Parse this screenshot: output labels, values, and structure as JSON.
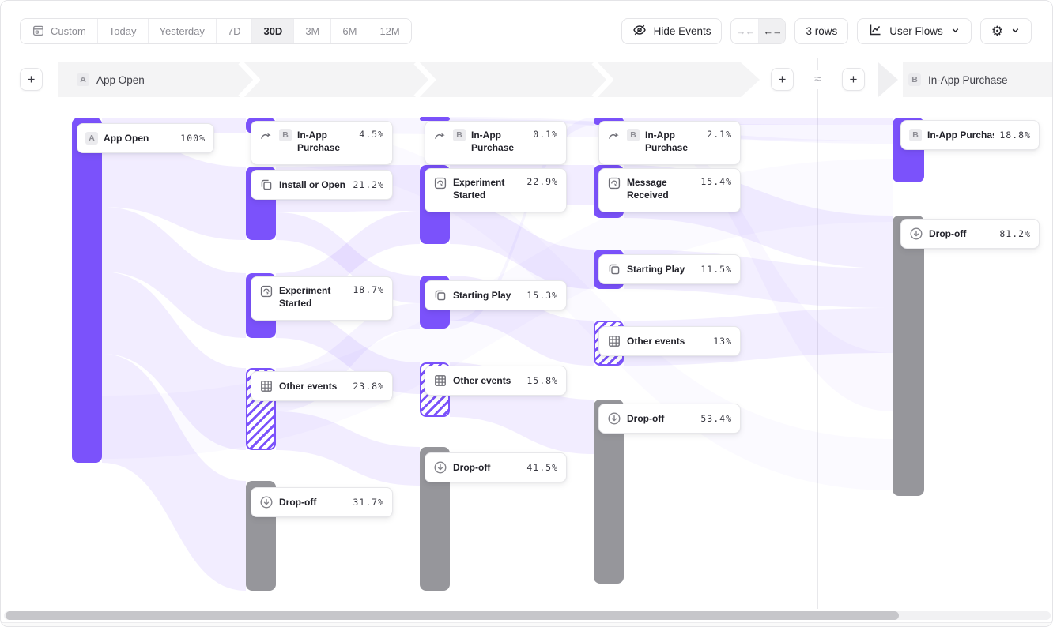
{
  "toolbar": {
    "date_ranges": [
      {
        "label": "Custom",
        "icon": "calendar",
        "active": false
      },
      {
        "label": "Today",
        "active": false
      },
      {
        "label": "Yesterday",
        "active": false
      },
      {
        "label": "7D",
        "active": false
      },
      {
        "label": "30D",
        "active": true
      },
      {
        "label": "3M",
        "active": false
      },
      {
        "label": "6M",
        "active": false
      },
      {
        "label": "12M",
        "active": false
      }
    ],
    "hide_events_label": "Hide Events",
    "collapse_glyph": "→←",
    "expand_glyph": "←→",
    "rows_label": "3 rows",
    "view_label": "User Flows",
    "gear_glyph": "⚙"
  },
  "header": {
    "start": {
      "badge": "A",
      "label": "App Open"
    },
    "end": {
      "badge": "B",
      "label": "In-App Purchase"
    },
    "approx_symbol": "≈",
    "plus_label": "+"
  },
  "colors": {
    "purple": "#7b52fb",
    "gray": "#96969b",
    "link": "#7b52fb"
  },
  "flow": {
    "nodes": [
      {
        "id": "step1-app-open",
        "label": "App Open",
        "value": "100%",
        "badge": "A",
        "icon": null,
        "type": "purple",
        "bar": [
          90,
          148,
          38,
          437
        ],
        "card": [
          96,
          155,
          174
        ],
        "lines": 1
      },
      {
        "id": "step2-in-app-purchase",
        "label": "In-App Purchase",
        "value": "4.5%",
        "badge": "B",
        "icon": "swoosh",
        "type": "purple",
        "bar": [
          310,
          148,
          38,
          20
        ],
        "card": [
          316,
          152,
          180
        ],
        "lines": 2
      },
      {
        "id": "step2-install-or-open",
        "label": "Install or Open",
        "value": "21.2%",
        "badge": null,
        "icon": "copy",
        "type": "purple",
        "bar": [
          310,
          210,
          38,
          93
        ],
        "card": [
          316,
          214,
          180
        ],
        "lines": 1
      },
      {
        "id": "step2-experiment-started",
        "label": "Experiment Started",
        "value": "18.7%",
        "badge": null,
        "icon": "experiment",
        "type": "purple",
        "bar": [
          310,
          345,
          38,
          82
        ],
        "card": [
          316,
          349,
          180
        ],
        "lines": 2
      },
      {
        "id": "step2-other-events",
        "label": "Other events",
        "value": "23.8%",
        "badge": null,
        "icon": "grid",
        "type": "hatched",
        "bar": [
          310,
          465,
          38,
          104
        ],
        "card": [
          316,
          469,
          180
        ],
        "lines": 1
      },
      {
        "id": "step2-drop-off",
        "label": "Drop-off",
        "value": "31.7%",
        "badge": null,
        "icon": "dropoff",
        "type": "gray",
        "bar": [
          310,
          608,
          38,
          139
        ],
        "card": [
          316,
          616,
          180
        ],
        "lines": 1
      },
      {
        "id": "step3-in-app-purchase",
        "label": "In-App Purchase",
        "value": "0.1%",
        "badge": "B",
        "icon": "swoosh",
        "type": "purple thin",
        "bar": [
          530,
          147,
          38,
          5
        ],
        "card": [
          536,
          152,
          180
        ],
        "lines": 2
      },
      {
        "id": "step3-experiment-started",
        "label": "Experiment Started",
        "value": "22.9%",
        "badge": null,
        "icon": "experiment",
        "type": "purple",
        "bar": [
          530,
          208,
          38,
          100
        ],
        "card": [
          536,
          212,
          180
        ],
        "lines": 2
      },
      {
        "id": "step3-starting-play",
        "label": "Starting Play",
        "value": "15.3%",
        "badge": null,
        "icon": "copy",
        "type": "purple",
        "bar": [
          530,
          348,
          38,
          67
        ],
        "card": [
          536,
          354,
          180
        ],
        "lines": 1
      },
      {
        "id": "step3-other-events",
        "label": "Other events",
        "value": "15.8%",
        "badge": null,
        "icon": "grid",
        "type": "hatched",
        "bar": [
          530,
          458,
          38,
          69
        ],
        "card": [
          536,
          462,
          180
        ],
        "lines": 1
      },
      {
        "id": "step3-drop-off",
        "label": "Drop-off",
        "value": "41.5%",
        "badge": null,
        "icon": "dropoff",
        "type": "gray",
        "bar": [
          530,
          565,
          38,
          182
        ],
        "card": [
          536,
          572,
          180
        ],
        "lines": 1
      },
      {
        "id": "step4-in-app-purchase",
        "label": "In-App Purchase",
        "value": "2.1%",
        "badge": "B",
        "icon": "swoosh",
        "type": "purple",
        "bar": [
          750,
          148,
          38,
          9
        ],
        "card": [
          756,
          152,
          180
        ],
        "lines": 2
      },
      {
        "id": "step4-message-received",
        "label": "Message Received",
        "value": "15.4%",
        "badge": null,
        "icon": "experiment",
        "type": "purple",
        "bar": [
          750,
          208,
          38,
          67
        ],
        "card": [
          756,
          212,
          180
        ],
        "lines": 2
      },
      {
        "id": "step4-starting-play",
        "label": "Starting Play",
        "value": "11.5%",
        "badge": null,
        "icon": "copy",
        "type": "purple",
        "bar": [
          750,
          315,
          38,
          50
        ],
        "card": [
          756,
          321,
          180
        ],
        "lines": 1
      },
      {
        "id": "step4-other-events",
        "label": "Other events",
        "value": "13%",
        "badge": null,
        "icon": "grid",
        "type": "hatched",
        "bar": [
          750,
          405,
          38,
          57
        ],
        "card": [
          756,
          412,
          180
        ],
        "lines": 1
      },
      {
        "id": "step4-drop-off",
        "label": "Drop-off",
        "value": "53.4%",
        "badge": null,
        "icon": "dropoff",
        "type": "gray",
        "bar": [
          750,
          505,
          38,
          233
        ],
        "card": [
          756,
          510,
          180
        ],
        "lines": 1
      },
      {
        "id": "target-in-app-purchase",
        "label": "In-App Purchase",
        "value": "18.8%",
        "badge": "B",
        "icon": null,
        "type": "purple",
        "bar": [
          1128,
          148,
          40,
          82
        ],
        "card": [
          1138,
          151,
          176
        ],
        "lines": 1
      },
      {
        "id": "target-drop-off",
        "label": "Drop-off",
        "value": "81.2%",
        "badge": null,
        "icon": "dropoff",
        "type": "gray",
        "bar": [
          1128,
          272,
          40,
          355
        ],
        "card": [
          1138,
          276,
          176
        ],
        "lines": 1
      }
    ],
    "links": [
      [
        128,
        148,
        168,
        310,
        148,
        168,
        0.1
      ],
      [
        128,
        168,
        261,
        310,
        210,
        303,
        0.1
      ],
      [
        128,
        261,
        343,
        310,
        345,
        427,
        0.1
      ],
      [
        128,
        343,
        447,
        310,
        465,
        569,
        0.1
      ],
      [
        128,
        447,
        585,
        310,
        608,
        747,
        0.1
      ],
      [
        348,
        210,
        268,
        530,
        208,
        266,
        0.1
      ],
      [
        348,
        268,
        303,
        530,
        348,
        383,
        0.1
      ],
      [
        348,
        345,
        387,
        530,
        266,
        308,
        0.1
      ],
      [
        348,
        387,
        427,
        530,
        458,
        498,
        0.1
      ],
      [
        348,
        465,
        520,
        530,
        383,
        415,
        0.07
      ],
      [
        348,
        520,
        569,
        530,
        565,
        614,
        0.1
      ],
      [
        568,
        208,
        258,
        750,
        208,
        258,
        0.1
      ],
      [
        568,
        258,
        308,
        750,
        315,
        365,
        0.1
      ],
      [
        568,
        348,
        405,
        750,
        405,
        462,
        0.1
      ],
      [
        568,
        458,
        527,
        750,
        505,
        574,
        0.1
      ],
      [
        568,
        405,
        415,
        750,
        148,
        158,
        0.06
      ],
      [
        788,
        148,
        157,
        1128,
        148,
        157,
        0.1
      ],
      [
        788,
        208,
        275,
        1128,
        272,
        339,
        0.09
      ],
      [
        788,
        315,
        365,
        1128,
        339,
        389,
        0.09
      ],
      [
        788,
        405,
        462,
        1128,
        389,
        446,
        0.09
      ],
      [
        348,
        148,
        168,
        1128,
        157,
        177,
        0.05
      ],
      [
        568,
        147,
        152,
        1128,
        177,
        181,
        0.05
      ],
      [
        788,
        157,
        166,
        1128,
        446,
        520,
        0.04
      ],
      [
        128,
        500,
        580,
        1128,
        200,
        280,
        0.03
      ],
      [
        348,
        160,
        210,
        1128,
        555,
        620,
        0.03
      ]
    ]
  }
}
